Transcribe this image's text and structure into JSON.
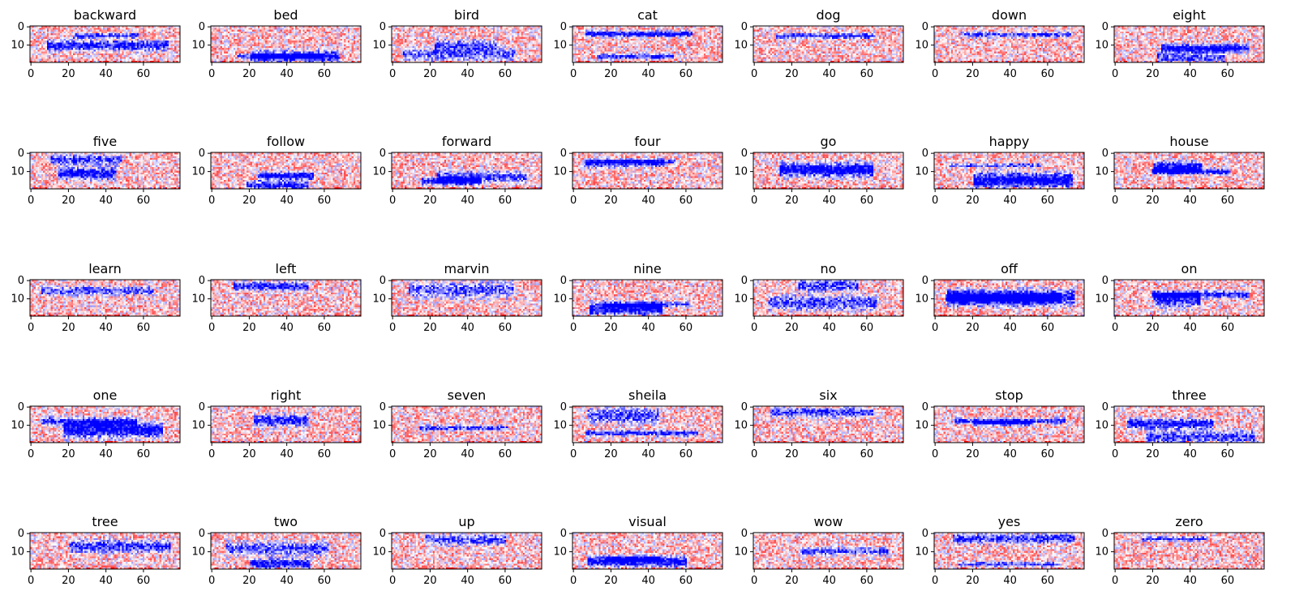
{
  "chart_data": {
    "type": "heatmap",
    "colormap": "bwr",
    "colors": {
      "low": "#0000ff",
      "mid": "#ffffff",
      "high": "#ff0000"
    },
    "grid": false,
    "layout": {
      "rows": 5,
      "cols": 7
    },
    "matrix_shape": [
      20,
      80
    ],
    "xlim": [
      0,
      79
    ],
    "ylim": [
      19,
      0
    ],
    "xticks": [
      "0",
      "20",
      "40",
      "60"
    ],
    "yticks": [
      "0",
      "10"
    ],
    "panels": [
      "backward",
      "bed",
      "bird",
      "cat",
      "dog",
      "down",
      "eight",
      "five",
      "follow",
      "forward",
      "four",
      "go",
      "happy",
      "house",
      "learn",
      "left",
      "marvin",
      "nine",
      "no",
      "off",
      "on",
      "one",
      "right",
      "seven",
      "sheila",
      "six",
      "stop",
      "three",
      "tree",
      "two",
      "up",
      "visual",
      "wow",
      "yes",
      "zero"
    ]
  }
}
